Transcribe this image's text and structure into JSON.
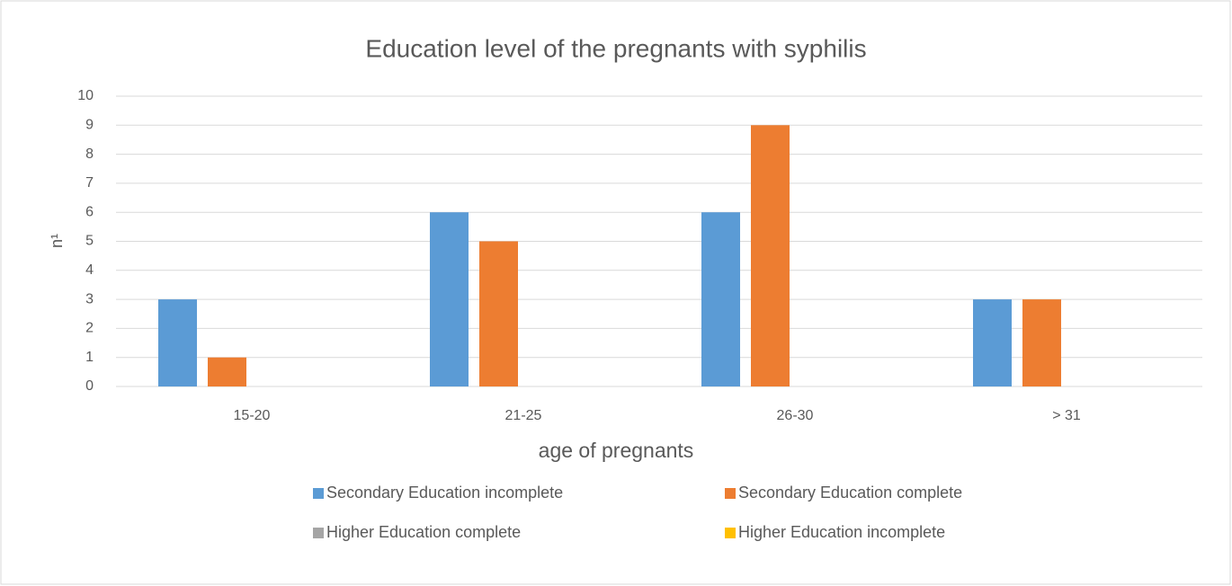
{
  "chart_data": {
    "type": "bar",
    "title": "Education level of the pregnants with syphilis",
    "x_label": "age of pregnants",
    "y_label": "n¹",
    "categories": [
      "15-20",
      "21-25",
      "26-30",
      "> 31"
    ],
    "series": [
      {
        "name": "Secondary Education incomplete",
        "color": "#5b9bd5",
        "values": [
          3,
          6,
          6,
          3
        ]
      },
      {
        "name": "Secondary Education complete",
        "color": "#ed7d31",
        "values": [
          1,
          5,
          9,
          3
        ]
      },
      {
        "name": "Higher Education complete",
        "color": "#a5a5a5",
        "values": [
          0,
          0,
          0,
          0
        ]
      },
      {
        "name": "Higher Education incomplete",
        "color": "#ffc000",
        "values": [
          0,
          0,
          0,
          0
        ]
      }
    ],
    "ylim": [
      0,
      10
    ],
    "yticks": [
      0,
      1,
      2,
      3,
      4,
      5,
      6,
      7,
      8,
      9,
      10
    ],
    "grid": true
  }
}
